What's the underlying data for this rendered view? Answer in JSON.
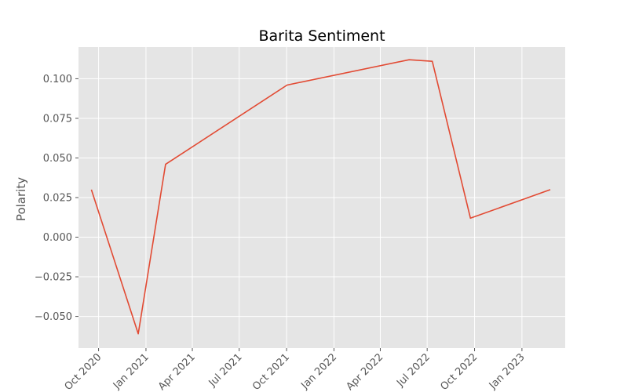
{
  "chart_data": {
    "type": "line",
    "title": "Barita Sentiment",
    "xlabel": "",
    "ylabel": "Polarity",
    "grid": true,
    "legend": "none",
    "x_ticks": [
      "Oct 2020",
      "Jan 2021",
      "Apr 2021",
      "Jul 2021",
      "Oct 2021",
      "Jan 2022",
      "Apr 2022",
      "Jul 2022",
      "Oct 2022",
      "Jan 2023"
    ],
    "x_tick_dates": [
      "2020-10-01",
      "2021-01-01",
      "2021-04-01",
      "2021-07-01",
      "2021-10-01",
      "2022-01-01",
      "2022-04-01",
      "2022-07-01",
      "2022-10-01",
      "2023-01-01"
    ],
    "xlim": [
      "2020-08-23",
      "2023-03-26"
    ],
    "y_ticks": [
      "0.100",
      "0.075",
      "0.050",
      "0.025",
      "0.000",
      "−0.025",
      "−0.050"
    ],
    "y_tick_values": [
      0.1,
      0.075,
      0.05,
      0.025,
      0.0,
      -0.025,
      -0.05
    ],
    "ylim": [
      -0.07,
      0.12
    ],
    "series": [
      {
        "color": "#E24A33",
        "x": [
          "2020-09-17",
          "2020-12-17",
          "2021-02-08",
          "2021-10-02",
          "2022-05-27",
          "2022-07-11",
          "2022-09-23",
          "2023-02-25"
        ],
        "y": [
          0.03,
          -0.061,
          0.046,
          0.096,
          0.112,
          0.111,
          0.012,
          0.03
        ]
      }
    ]
  }
}
